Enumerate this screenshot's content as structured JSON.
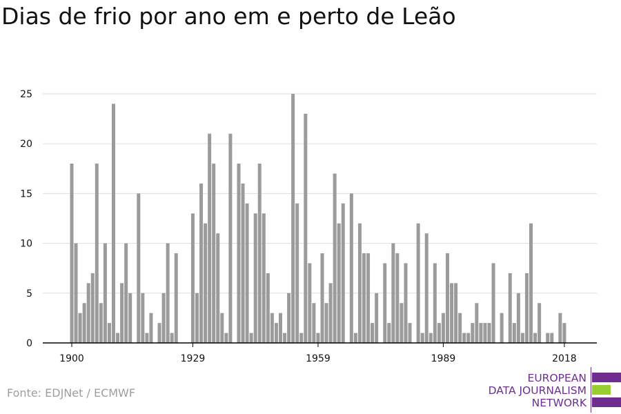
{
  "title": "Dias de frio por ano em e perto de Leão",
  "source": "Fonte: EDJNet / ECMWF",
  "logo": {
    "lines": [
      "EUROPEAN",
      "DATA JOURNALISM",
      "NETWORK"
    ],
    "colors": {
      "purple": "#6d2e8f",
      "green": "#9acd32"
    }
  },
  "colors": {
    "bar": "#9b9b9b",
    "grid": "#dddddd",
    "axis": "#000000",
    "text": "#111111"
  },
  "chart_data": {
    "type": "bar",
    "title": "Dias de frio por ano em e perto de Leão",
    "xlabel": "",
    "ylabel": "",
    "x_ticks": [
      1900,
      1929,
      1959,
      1989,
      2018
    ],
    "y_ticks": [
      0,
      5,
      10,
      15,
      20,
      25
    ],
    "ylim": [
      0,
      25
    ],
    "grid": true,
    "years": [
      1900,
      1901,
      1902,
      1903,
      1904,
      1905,
      1906,
      1907,
      1908,
      1909,
      1910,
      1911,
      1912,
      1913,
      1914,
      1915,
      1916,
      1917,
      1918,
      1919,
      1920,
      1921,
      1922,
      1923,
      1924,
      1925,
      1926,
      1927,
      1928,
      1929,
      1930,
      1931,
      1932,
      1933,
      1934,
      1935,
      1936,
      1937,
      1938,
      1939,
      1940,
      1941,
      1942,
      1943,
      1944,
      1945,
      1946,
      1947,
      1948,
      1949,
      1950,
      1951,
      1952,
      1953,
      1954,
      1955,
      1956,
      1957,
      1958,
      1959,
      1960,
      1961,
      1962,
      1963,
      1964,
      1965,
      1966,
      1967,
      1968,
      1969,
      1970,
      1971,
      1972,
      1973,
      1974,
      1975,
      1976,
      1977,
      1978,
      1979,
      1980,
      1981,
      1982,
      1983,
      1984,
      1985,
      1986,
      1987,
      1988,
      1989,
      1990,
      1991,
      1992,
      1993,
      1994,
      1995,
      1996,
      1997,
      1998,
      1999,
      2000,
      2001,
      2002,
      2003,
      2004,
      2005,
      2006,
      2007,
      2008,
      2009,
      2010,
      2011,
      2012,
      2013,
      2014,
      2015,
      2016,
      2017,
      2018,
      2019
    ],
    "values": [
      18,
      10,
      3,
      4,
      6,
      7,
      18,
      4,
      10,
      2,
      24,
      1,
      6,
      10,
      5,
      0,
      15,
      5,
      1,
      3,
      0,
      2,
      5,
      10,
      1,
      9,
      0,
      0,
      0,
      13,
      5,
      16,
      12,
      21,
      18,
      11,
      3,
      1,
      21,
      0,
      18,
      16,
      14,
      1,
      13,
      18,
      13,
      7,
      3,
      2,
      3,
      1,
      5,
      25,
      14,
      1,
      23,
      8,
      4,
      1,
      9,
      4,
      6,
      17,
      12,
      14,
      0,
      15,
      1,
      12,
      9,
      9,
      2,
      5,
      0,
      8,
      2,
      10,
      9,
      4,
      8,
      2,
      0,
      12,
      1,
      11,
      1,
      8,
      2,
      3,
      9,
      6,
      6,
      3,
      1,
      1,
      2,
      4,
      2,
      2,
      2,
      8,
      0,
      3,
      0,
      7,
      2,
      5,
      1,
      7,
      12,
      1,
      4,
      0,
      1,
      1,
      0,
      3,
      2,
      0
    ]
  }
}
